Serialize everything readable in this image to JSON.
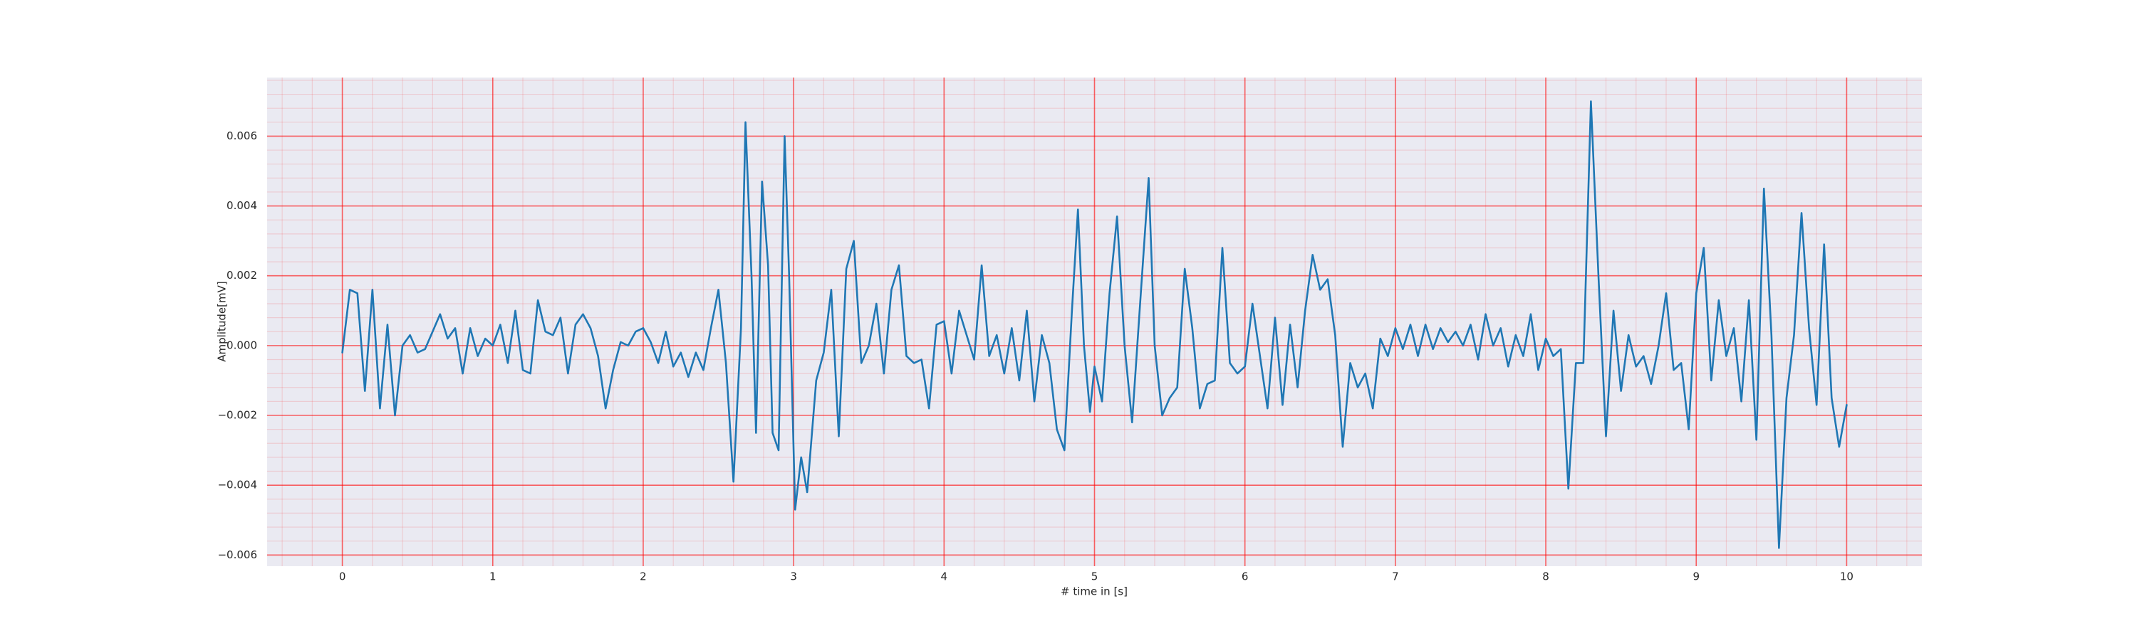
{
  "chart_data": {
    "type": "line",
    "x_label": "# time in [s]",
    "y_label": "Amplitude[mV]",
    "xlim": [
      -0.5,
      10.5
    ],
    "ylim": [
      -0.00632,
      0.00768
    ],
    "xticks": [
      0,
      1,
      2,
      3,
      4,
      5,
      6,
      7,
      8,
      9,
      10
    ],
    "yticks": [
      {
        "value": -0.006,
        "label": "−0.006"
      },
      {
        "value": -0.004,
        "label": "−0.004"
      },
      {
        "value": -0.002,
        "label": "−0.002"
      },
      {
        "value": 0,
        "label": "0.000"
      },
      0.002,
      0.004,
      0.006
    ],
    "grid": true,
    "grid_color": "#ff0000",
    "minor_grid_divisions": 5,
    "background": "#eaeaf2",
    "series": [
      {
        "color": "#1f77b4",
        "x": [
          0,
          0.05,
          0.1,
          0.15,
          0.2,
          0.25,
          0.3,
          0.35,
          0.4,
          0.45,
          0.5,
          0.55,
          0.6,
          0.65,
          0.7,
          0.75,
          0.8,
          0.85,
          0.9,
          0.95,
          1.0,
          1.05,
          1.1,
          1.15,
          1.2,
          1.25,
          1.3,
          1.35,
          1.4,
          1.45,
          1.5,
          1.55,
          1.6,
          1.65,
          1.7,
          1.75,
          1.8,
          1.85,
          1.9,
          1.95,
          2.0,
          2.05,
          2.1,
          2.15,
          2.2,
          2.25,
          2.3,
          2.35,
          2.4,
          2.45,
          2.5,
          2.55,
          2.6,
          2.65,
          2.68,
          2.72,
          2.75,
          2.79,
          2.83,
          2.86,
          2.9,
          2.94,
          2.97,
          3.01,
          3.05,
          3.09,
          3.15,
          3.2,
          3.25,
          3.3,
          3.35,
          3.4,
          3.45,
          3.5,
          3.55,
          3.6,
          3.65,
          3.7,
          3.75,
          3.8,
          3.85,
          3.9,
          3.95,
          4.0,
          4.05,
          4.1,
          4.15,
          4.2,
          4.25,
          4.3,
          4.35,
          4.4,
          4.45,
          4.5,
          4.55,
          4.6,
          4.65,
          4.7,
          4.75,
          4.8,
          4.85,
          4.89,
          4.93,
          4.97,
          5.0,
          5.05,
          5.1,
          5.15,
          5.2,
          5.25,
          5.3,
          5.36,
          5.4,
          5.45,
          5.5,
          5.55,
          5.6,
          5.65,
          5.7,
          5.75,
          5.8,
          5.85,
          5.9,
          5.95,
          6.0,
          6.05,
          6.1,
          6.15,
          6.2,
          6.25,
          6.3,
          6.35,
          6.4,
          6.45,
          6.5,
          6.55,
          6.6,
          6.65,
          6.7,
          6.75,
          6.8,
          6.85,
          6.9,
          6.95,
          7.0,
          7.05,
          7.1,
          7.15,
          7.2,
          7.25,
          7.3,
          7.35,
          7.4,
          7.45,
          7.5,
          7.55,
          7.6,
          7.65,
          7.7,
          7.75,
          7.8,
          7.85,
          7.9,
          7.95,
          8.0,
          8.05,
          8.1,
          8.15,
          8.2,
          8.25,
          8.3,
          8.35,
          8.4,
          8.45,
          8.5,
          8.55,
          8.6,
          8.65,
          8.7,
          8.75,
          8.8,
          8.85,
          8.9,
          8.95,
          9.0,
          9.05,
          9.1,
          9.15,
          9.2,
          9.25,
          9.3,
          9.35,
          9.4,
          9.45,
          9.5,
          9.55,
          9.6,
          9.65,
          9.7,
          9.75,
          9.8,
          9.85,
          9.9,
          9.95,
          10.0
        ],
        "values": [
          -0.0002,
          0.0016,
          0.0015,
          -0.0013,
          0.0016,
          -0.0018,
          0.0006,
          -0.002,
          0.0,
          0.0003,
          -0.0002,
          -0.0001,
          0.0004,
          0.0009,
          0.0002,
          0.0005,
          -0.0008,
          0.0005,
          -0.0003,
          0.0002,
          0.0,
          0.0006,
          -0.0005,
          0.001,
          -0.0007,
          -0.0008,
          0.0013,
          0.0004,
          0.0003,
          0.0008,
          -0.0008,
          0.0006,
          0.0009,
          0.0005,
          -0.0003,
          -0.0018,
          -0.0007,
          0.0001,
          0.0,
          0.0004,
          0.0005,
          0.0001,
          -0.0005,
          0.0004,
          -0.0006,
          -0.0002,
          -0.0009,
          -0.0002,
          -0.0007,
          0.0005,
          0.0016,
          -0.0005,
          -0.0039,
          0.0005,
          0.0064,
          0.002,
          -0.0025,
          0.0047,
          0.0023,
          -0.0025,
          -0.003,
          0.006,
          0.002,
          -0.0047,
          -0.0032,
          -0.0042,
          -0.001,
          -0.0002,
          0.0016,
          -0.0026,
          0.0022,
          0.003,
          -0.0005,
          0.0,
          0.0012,
          -0.0008,
          0.0016,
          0.0023,
          -0.0003,
          -0.0005,
          -0.0004,
          -0.0018,
          0.0006,
          0.0007,
          -0.0008,
          0.001,
          0.0003,
          -0.0004,
          0.0023,
          -0.0003,
          0.0003,
          -0.0008,
          0.0005,
          -0.001,
          0.001,
          -0.0016,
          0.0003,
          -0.0005,
          -0.0024,
          -0.003,
          0.001,
          0.0039,
          0.0,
          -0.0019,
          -0.0006,
          -0.0016,
          0.0015,
          0.0037,
          0.0,
          -0.0022,
          0.001,
          0.0048,
          0.0,
          -0.002,
          -0.0015,
          -0.0012,
          0.0022,
          0.0005,
          -0.0018,
          -0.0011,
          -0.001,
          0.0028,
          -0.0005,
          -0.0008,
          -0.0006,
          0.0012,
          -0.0003,
          -0.0018,
          0.0008,
          -0.0017,
          0.0006,
          -0.0012,
          0.001,
          0.0026,
          0.0016,
          0.0019,
          0.0003,
          -0.0029,
          -0.0005,
          -0.0012,
          -0.0008,
          -0.0018,
          0.0002,
          -0.0003,
          0.0005,
          -0.0001,
          0.0006,
          -0.0003,
          0.0006,
          -0.0001,
          0.0005,
          0.0001,
          0.0004,
          0.0,
          0.0006,
          -0.0004,
          0.0009,
          0.0,
          0.0005,
          -0.0006,
          0.0003,
          -0.0003,
          0.0009,
          -0.0007,
          0.0002,
          -0.0003,
          -0.0001,
          -0.0041,
          -0.0005,
          -0.0005,
          0.007,
          0.002,
          -0.0026,
          0.001,
          -0.0013,
          0.0003,
          -0.0006,
          -0.0003,
          -0.0011,
          0.0,
          0.0015,
          -0.0007,
          -0.0005,
          -0.0024,
          0.0015,
          0.0028,
          -0.001,
          0.0013,
          -0.0003,
          0.0005,
          -0.0016,
          0.0013,
          -0.0027,
          0.0045,
          0.0003,
          -0.0058,
          -0.0015,
          0.0003,
          0.0038,
          0.0005,
          -0.0017,
          0.0029,
          -0.0015,
          -0.0029,
          -0.0017
        ]
      }
    ]
  }
}
